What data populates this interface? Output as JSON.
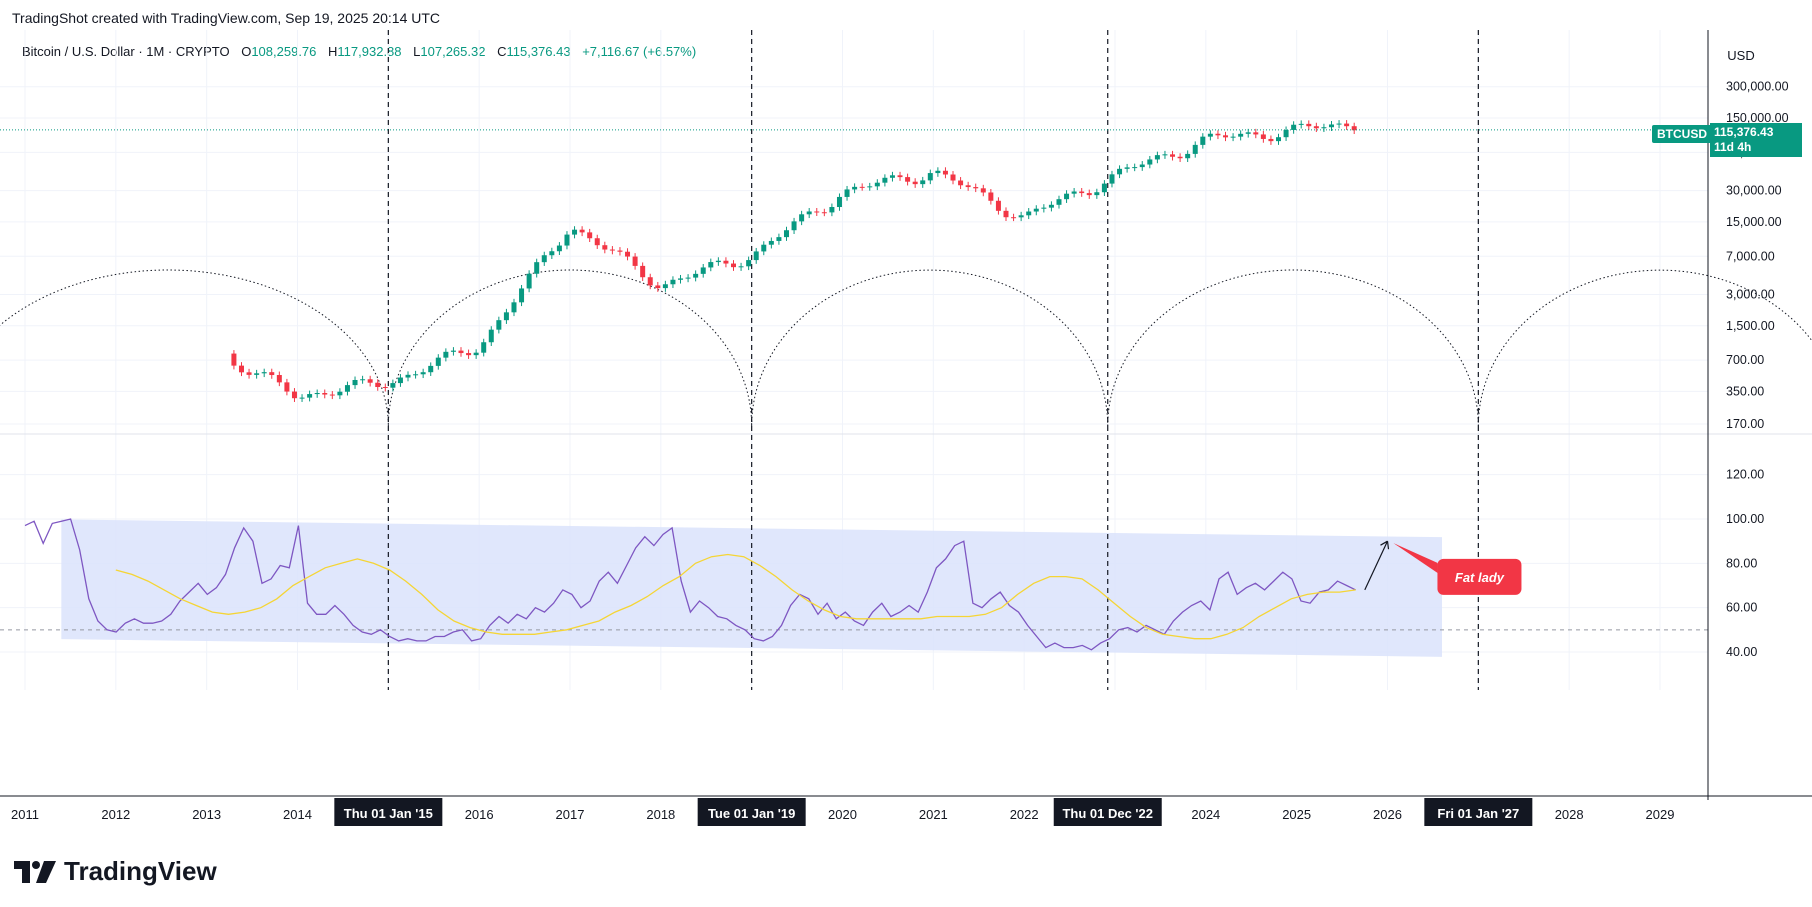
{
  "header": {
    "title": "TradingShot created with TradingView.com, Sep 19, 2025 20:14 UTC"
  },
  "legend": {
    "symbol": "Bitcoin / U.S. Dollar · 1M · CRYPTO",
    "o_label": "O",
    "o_value": "108,259.76",
    "h_label": "H",
    "h_value": "117,932.88",
    "l_label": "L",
    "l_value": "107,265.32",
    "c_label": "C",
    "c_value": "115,376.43",
    "change": "+7,116.67 (+6.57%)"
  },
  "price_axis": {
    "currency": "USD",
    "ticks": [
      "300,000.00",
      "150,000.00",
      "70,000.00",
      "30,000.00",
      "15,000.00",
      "7,000.00",
      "3,000.00",
      "1,500.00",
      "700.00",
      "350.00",
      "170.00"
    ]
  },
  "indicator_axis": {
    "ticks": [
      "120.00",
      "100.00",
      "80.00",
      "60.00",
      "40.00"
    ]
  },
  "current_price": {
    "ticker": "BTCUSD",
    "price": "115,376.43",
    "countdown": "11d 4h"
  },
  "time_axis": {
    "years": [
      "2011",
      "2012",
      "2013",
      "2014",
      "2016",
      "2017",
      "2018",
      "2020",
      "2021",
      "2022",
      "2024",
      "2025",
      "2026",
      "2028",
      "2029"
    ],
    "highlighted_dates": [
      "Thu 01 Jan '15",
      "Tue 01 Jan '19",
      "Thu 01 Dec '22",
      "Fri 01 Jan '27"
    ]
  },
  "annotation": {
    "label": "Fat lady"
  },
  "colors": {
    "up": "#089981",
    "down": "#f23645",
    "rsi": "#7e57c2",
    "rsi_ma": "#f5d535",
    "channel": "#dbe3fc",
    "label": "#f23645"
  },
  "brand": {
    "name": "TradingView"
  },
  "chart_data": [
    {
      "type": "candlestick",
      "title": "Bitcoin / U.S. Dollar · 1M · CRYPTO",
      "y_scale": "log",
      "ylabel": "USD",
      "xlim": [
        "2011",
        "2029"
      ],
      "annual_close_approx": [
        {
          "year": 2013,
          "value": 900
        },
        {
          "year": 2014,
          "value": 320
        },
        {
          "year": 2015,
          "value": 430
        },
        {
          "year": 2016,
          "value": 960
        },
        {
          "year": 2017,
          "value": 14000
        },
        {
          "year": 2018,
          "value": 3700
        },
        {
          "year": 2019,
          "value": 7200
        },
        {
          "year": 2020,
          "value": 29000
        },
        {
          "year": 2021,
          "value": 46000
        },
        {
          "year": 2022,
          "value": 16500
        },
        {
          "year": 2023,
          "value": 42000
        },
        {
          "year": 2024,
          "value": 93000
        },
        {
          "year": 2025,
          "value": 115376.43
        }
      ],
      "last": {
        "open": 108259.76,
        "high": 117932.88,
        "low": 107265.32,
        "close": 115376.43
      }
    },
    {
      "type": "line",
      "series": [
        {
          "name": "RSI",
          "values": [
            97,
            99,
            89,
            98,
            99,
            100,
            86,
            64,
            54,
            50,
            49,
            53,
            55,
            53,
            53,
            54,
            57,
            63,
            67,
            71,
            66,
            69,
            75,
            87,
            96,
            90,
            71,
            73,
            79,
            78,
            97,
            62,
            57,
            57,
            61,
            57,
            52,
            49,
            48,
            50,
            47,
            45,
            46,
            45,
            45,
            47,
            47,
            49,
            50,
            45,
            46,
            52,
            56,
            53,
            57,
            55,
            60,
            58,
            62,
            68,
            66,
            60,
            63,
            72,
            76,
            71,
            79,
            87,
            92,
            88,
            93,
            96,
            72,
            58,
            63,
            60,
            56,
            55,
            52,
            50,
            46,
            45,
            47,
            52,
            61,
            66,
            64,
            57,
            62,
            55,
            58,
            54,
            52,
            58,
            62,
            56,
            58,
            61,
            58,
            67,
            78,
            82,
            88,
            90,
            62,
            60,
            64,
            67,
            61,
            58,
            52,
            47,
            42,
            44,
            42,
            42,
            43,
            41,
            44,
            46,
            50,
            51,
            49,
            52,
            50,
            48,
            54,
            58,
            61,
            63,
            59,
            73,
            76,
            66,
            69,
            71,
            68,
            72,
            76,
            73,
            63,
            62,
            67,
            68,
            72,
            70,
            68
          ]
        },
        {
          "name": "RSI-based MA",
          "values": [
            77,
            75,
            72,
            68,
            64,
            61,
            58,
            57,
            58,
            60,
            64,
            70,
            74,
            78,
            80,
            82,
            80,
            77,
            72,
            66,
            59,
            54,
            51,
            49,
            48,
            48,
            48,
            49,
            50,
            52,
            54,
            58,
            61,
            65,
            70,
            74,
            80,
            83,
            84,
            83,
            79,
            74,
            68,
            63,
            59,
            56,
            55,
            55,
            55,
            55,
            55,
            56,
            56,
            56,
            57,
            60,
            66,
            71,
            74,
            74,
            73,
            68,
            62,
            56,
            51,
            48,
            47,
            46,
            46,
            48,
            51,
            56,
            60,
            64,
            66,
            67,
            67,
            68
          ]
        }
      ],
      "ylim": [
        30,
        130
      ],
      "reference_line": 50
    }
  ]
}
